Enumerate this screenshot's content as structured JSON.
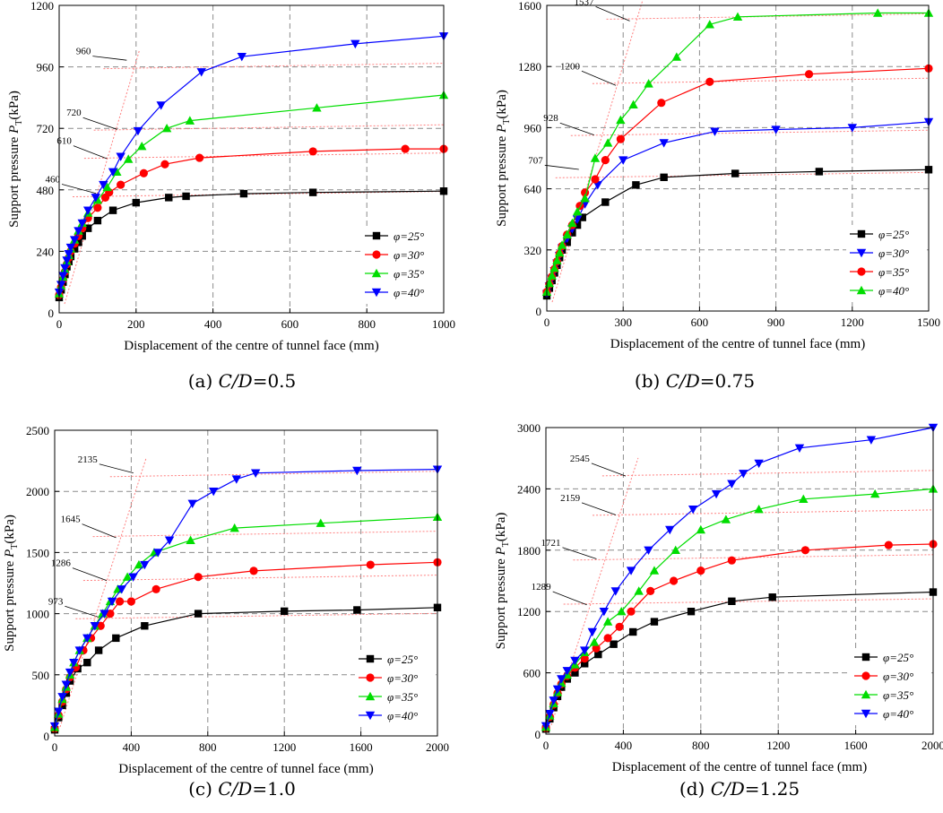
{
  "figure": {
    "x_label": "Displacement of the centre of tunnel face (mm)",
    "y_label_main": "Support pressure",
    "y_label_symbol": "P",
    "y_label_sub": "T",
    "y_label_unit": "(kPa)"
  },
  "colors": {
    "phi25": "#000000",
    "phi30": "#ff0000",
    "phi35": "#00dd00",
    "phi40": "#0000ff",
    "guide": "#ff8080",
    "grid": "#8c8c8c"
  },
  "chart_data": [
    {
      "type": "line",
      "caption": {
        "prefix": "(a) ",
        "ratio": "C/D",
        "value": "=0.5"
      },
      "xlim": [
        0,
        1000
      ],
      "ylim": [
        0,
        1200
      ],
      "xticks": [
        0,
        200,
        400,
        600,
        800,
        1000
      ],
      "yticks": [
        0,
        240,
        480,
        720,
        960,
        1200
      ],
      "legend": {
        "position": "bottom-right",
        "labels": [
          "φ=25°",
          "φ=30°",
          "φ=35°",
          "φ=40°"
        ]
      },
      "series": [
        {
          "name": "φ=25°",
          "marker": "square",
          "color": "#000000",
          "x": [
            0,
            5,
            10,
            15,
            20,
            25,
            30,
            40,
            50,
            60,
            75,
            100,
            140,
            200,
            285,
            330,
            480,
            660,
            1000
          ],
          "y": [
            60,
            90,
            120,
            150,
            180,
            200,
            220,
            250,
            275,
            300,
            330,
            360,
            400,
            430,
            450,
            455,
            465,
            470,
            475
          ]
        },
        {
          "name": "φ=30°",
          "marker": "circle",
          "color": "#ff0000",
          "x": [
            0,
            5,
            10,
            15,
            20,
            25,
            30,
            40,
            50,
            60,
            75,
            100,
            120,
            130,
            160,
            220,
            275,
            365,
            660,
            900,
            1000
          ],
          "y": [
            70,
            100,
            130,
            160,
            190,
            215,
            240,
            270,
            300,
            330,
            370,
            410,
            450,
            470,
            500,
            545,
            580,
            605,
            630,
            640,
            640
          ]
        },
        {
          "name": "φ=35°",
          "marker": "triangle-up",
          "color": "#00dd00",
          "x": [
            0,
            5,
            10,
            15,
            20,
            25,
            30,
            40,
            50,
            60,
            75,
            100,
            125,
            150,
            180,
            215,
            280,
            340,
            670,
            1000
          ],
          "y": [
            75,
            105,
            140,
            170,
            200,
            225,
            250,
            285,
            320,
            350,
            390,
            440,
            490,
            550,
            600,
            650,
            720,
            750,
            800,
            850
          ]
        },
        {
          "name": "φ=40°",
          "marker": "triangle-down",
          "color": "#0000ff",
          "x": [
            0,
            5,
            10,
            15,
            20,
            25,
            30,
            40,
            50,
            60,
            75,
            95,
            115,
            140,
            160,
            205,
            265,
            370,
            475,
            770,
            1000
          ],
          "y": [
            80,
            110,
            145,
            175,
            205,
            230,
            255,
            285,
            320,
            350,
            400,
            450,
            500,
            550,
            610,
            710,
            810,
            940,
            1000,
            1050,
            1080
          ]
        }
      ],
      "annotations": [
        {
          "label": "460",
          "value": 460,
          "at": [
            105,
            480
          ]
        },
        {
          "label": "610",
          "value": 610,
          "at": [
            135,
            615
          ]
        },
        {
          "label": "720",
          "value": 720,
          "at": [
            160,
            730
          ]
        },
        {
          "label": "960",
          "value": 960,
          "at": [
            185,
            1000
          ]
        }
      ]
    },
    {
      "type": "line",
      "caption": {
        "prefix": "(b) ",
        "ratio": "C/D",
        "value": "=0.75"
      },
      "xlim": [
        0,
        1500
      ],
      "ylim": [
        0,
        1600
      ],
      "xticks": [
        0,
        300,
        600,
        900,
        1200,
        1500
      ],
      "yticks": [
        0,
        320,
        640,
        960,
        1280,
        1600
      ],
      "legend": {
        "position": "bottom-right",
        "labels": [
          "φ=25°",
          "φ=30°",
          "φ=35°",
          "φ=40°"
        ]
      },
      "series": [
        {
          "name": "φ=25°",
          "marker": "square",
          "color": "#000000",
          "x": [
            0,
            10,
            20,
            30,
            40,
            50,
            60,
            80,
            100,
            120,
            140,
            230,
            350,
            460,
            740,
            1070,
            1500
          ],
          "y": [
            80,
            120,
            160,
            200,
            240,
            280,
            320,
            360,
            410,
            450,
            490,
            570,
            660,
            700,
            720,
            730,
            740
          ]
        },
        {
          "name": "φ=30°",
          "marker": "triangle-down",
          "color": "#0000ff",
          "x": [
            0,
            10,
            20,
            30,
            40,
            50,
            60,
            80,
            100,
            120,
            150,
            200,
            300,
            460,
            660,
            900,
            1200,
            1500
          ],
          "y": [
            90,
            130,
            170,
            210,
            250,
            290,
            330,
            380,
            430,
            480,
            560,
            660,
            790,
            880,
            940,
            950,
            960,
            990
          ]
        },
        {
          "name": "φ=35°",
          "marker": "circle",
          "color": "#ff0000",
          "x": [
            0,
            10,
            20,
            30,
            40,
            50,
            60,
            80,
            100,
            130,
            150,
            190,
            230,
            290,
            450,
            640,
            1030,
            1500
          ],
          "y": [
            100,
            140,
            180,
            220,
            260,
            300,
            340,
            400,
            450,
            550,
            620,
            690,
            790,
            900,
            1090,
            1200,
            1240,
            1270
          ]
        },
        {
          "name": "φ=40°",
          "marker": "triangle-up",
          "color": "#00dd00",
          "x": [
            0,
            10,
            20,
            30,
            40,
            50,
            60,
            80,
            100,
            120,
            150,
            190,
            240,
            290,
            340,
            400,
            510,
            640,
            750,
            1300,
            1500
          ],
          "y": [
            100,
            145,
            185,
            225,
            265,
            305,
            345,
            400,
            460,
            520,
            590,
            800,
            880,
            1000,
            1080,
            1190,
            1330,
            1500,
            1540,
            1560,
            1560
          ]
        }
      ],
      "annotations": [
        {
          "label": "707",
          "value": 707,
          "at": [
            140,
            760
          ]
        },
        {
          "label": "928",
          "value": 928,
          "at": [
            200,
            940
          ]
        },
        {
          "label": "1200",
          "value": 1200,
          "at": [
            285,
            1200
          ]
        },
        {
          "label": "1537",
          "value": 1537,
          "at": [
            340,
            1537
          ]
        }
      ]
    },
    {
      "type": "line",
      "caption": {
        "prefix": "(c) ",
        "ratio": "C/D",
        "value": "=1.0"
      },
      "xlim": [
        0,
        2000
      ],
      "ylim": [
        0,
        2500
      ],
      "xticks": [
        0,
        400,
        800,
        1200,
        1600,
        2000
      ],
      "yticks": [
        0,
        500,
        1000,
        1500,
        2000,
        2500
      ],
      "legend": {
        "position": "bottom-right",
        "labels": [
          "φ=25°",
          "φ=30°",
          "φ=35°",
          "φ=40°"
        ]
      },
      "series": [
        {
          "name": "φ=25°",
          "marker": "square",
          "color": "#000000",
          "x": [
            0,
            20,
            40,
            60,
            80,
            120,
            170,
            230,
            320,
            470,
            750,
            1200,
            1580,
            2000
          ],
          "y": [
            50,
            150,
            250,
            350,
            450,
            550,
            600,
            700,
            800,
            900,
            1000,
            1020,
            1030,
            1050
          ]
        },
        {
          "name": "φ=30°",
          "marker": "circle",
          "color": "#ff0000",
          "x": [
            0,
            20,
            40,
            60,
            80,
            110,
            150,
            190,
            240,
            290,
            340,
            400,
            530,
            750,
            1040,
            1650,
            2000
          ],
          "y": [
            60,
            170,
            280,
            380,
            480,
            560,
            700,
            800,
            900,
            1000,
            1100,
            1100,
            1200,
            1300,
            1350,
            1400,
            1420
          ]
        },
        {
          "name": "φ=35°",
          "marker": "triangle-up",
          "color": "#00dd00",
          "x": [
            0,
            20,
            40,
            60,
            80,
            100,
            130,
            170,
            210,
            250,
            290,
            330,
            380,
            440,
            520,
            710,
            940,
            1390,
            2000
          ],
          "y": [
            70,
            180,
            300,
            400,
            500,
            600,
            700,
            800,
            900,
            1000,
            1100,
            1200,
            1300,
            1400,
            1500,
            1600,
            1700,
            1740,
            1790
          ]
        },
        {
          "name": "φ=40°",
          "marker": "triangle-down",
          "color": "#0000ff",
          "x": [
            0,
            20,
            40,
            60,
            80,
            100,
            130,
            170,
            210,
            260,
            300,
            350,
            410,
            470,
            540,
            600,
            720,
            830,
            950,
            1050,
            1580,
            2000
          ],
          "y": [
            80,
            200,
            320,
            420,
            520,
            600,
            700,
            800,
            900,
            1000,
            1100,
            1200,
            1300,
            1400,
            1500,
            1600,
            1900,
            2000,
            2100,
            2150,
            2170,
            2180
          ]
        }
      ],
      "annotations": [
        {
          "label": "973",
          "value": 973,
          "at": [
            250,
            1000
          ]
        },
        {
          "label": "1286",
          "value": 1286,
          "at": [
            290,
            1300
          ]
        },
        {
          "label": "1645",
          "value": 1645,
          "at": [
            340,
            1650
          ]
        },
        {
          "label": "2135",
          "value": 2135,
          "at": [
            430,
            2180
          ]
        }
      ]
    },
    {
      "type": "line",
      "caption": {
        "prefix": "(d) ",
        "ratio": "C/D",
        "value": "=1.25"
      },
      "xlim": [
        0,
        2000
      ],
      "ylim": [
        0,
        3000
      ],
      "xticks": [
        0,
        400,
        800,
        1200,
        1600,
        2000
      ],
      "yticks": [
        0,
        600,
        1200,
        1800,
        2400,
        3000
      ],
      "legend": {
        "position": "bottom-right",
        "labels": [
          "φ=25°",
          "φ=30°",
          "φ=35°",
          "φ=40°"
        ]
      },
      "series": [
        {
          "name": "φ=25°",
          "marker": "square",
          "color": "#000000",
          "x": [
            0,
            20,
            40,
            60,
            80,
            110,
            150,
            200,
            270,
            350,
            450,
            560,
            750,
            960,
            1170,
            2000
          ],
          "y": [
            50,
            150,
            260,
            370,
            460,
            540,
            600,
            690,
            780,
            880,
            1000,
            1100,
            1200,
            1300,
            1340,
            1390
          ]
        },
        {
          "name": "φ=30°",
          "marker": "circle",
          "color": "#ff0000",
          "x": [
            0,
            20,
            40,
            60,
            80,
            110,
            150,
            200,
            260,
            320,
            380,
            440,
            540,
            660,
            800,
            960,
            1340,
            1770,
            2000
          ],
          "y": [
            60,
            170,
            290,
            400,
            490,
            570,
            650,
            740,
            840,
            940,
            1050,
            1200,
            1400,
            1500,
            1600,
            1700,
            1800,
            1850,
            1860
          ]
        },
        {
          "name": "φ=35°",
          "marker": "triangle-up",
          "color": "#00dd00",
          "x": [
            0,
            20,
            40,
            60,
            80,
            110,
            150,
            200,
            250,
            320,
            390,
            480,
            560,
            670,
            800,
            930,
            1100,
            1330,
            1700,
            2000
          ],
          "y": [
            70,
            180,
            300,
            410,
            500,
            580,
            680,
            800,
            900,
            1100,
            1200,
            1400,
            1600,
            1800,
            2000,
            2100,
            2200,
            2300,
            2350,
            2400
          ]
        },
        {
          "name": "φ=40°",
          "marker": "triangle-down",
          "color": "#0000ff",
          "x": [
            0,
            20,
            40,
            60,
            80,
            110,
            150,
            200,
            240,
            300,
            360,
            440,
            530,
            640,
            760,
            880,
            960,
            1020,
            1100,
            1310,
            1680,
            2000
          ],
          "y": [
            80,
            200,
            330,
            440,
            540,
            620,
            720,
            820,
            1000,
            1200,
            1400,
            1600,
            1800,
            2000,
            2200,
            2350,
            2450,
            2550,
            2650,
            2800,
            2880,
            3000
          ]
        }
      ],
      "annotations": [
        {
          "label": "1289",
          "value": 1289,
          "at": [
            230,
            1300
          ]
        },
        {
          "label": "1721",
          "value": 1721,
          "at": [
            280,
            1750
          ]
        },
        {
          "label": "2159",
          "value": 2159,
          "at": [
            380,
            2180
          ]
        },
        {
          "label": "2545",
          "value": 2545,
          "at": [
            430,
            2560
          ]
        }
      ]
    }
  ]
}
